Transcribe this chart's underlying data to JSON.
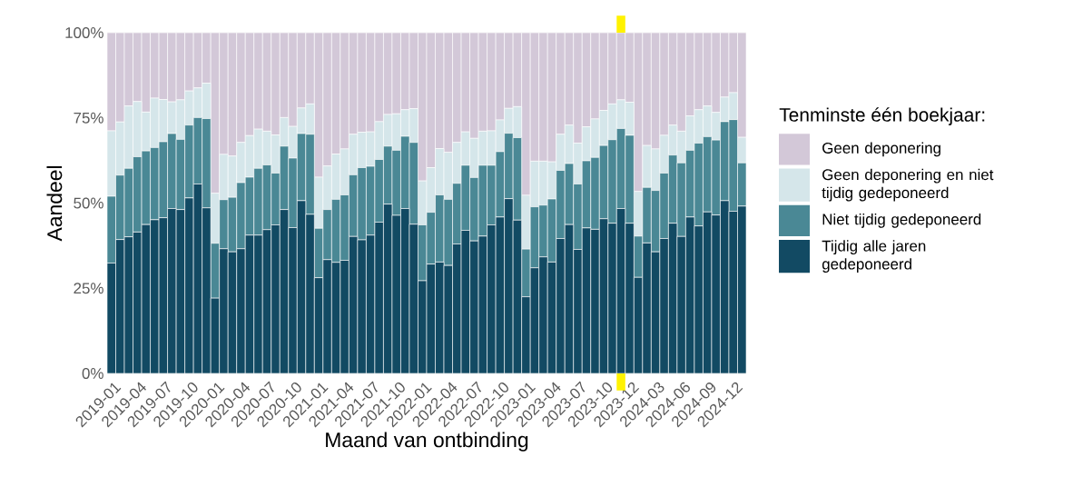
{
  "chart_data": {
    "type": "bar",
    "stacked": true,
    "xlabel": "Maand van ontbinding",
    "ylabel": "Aandeel",
    "legend_title": "Tenminste één boekjaar:",
    "categories": [
      "2019-01",
      null,
      null,
      "2019-04",
      null,
      null,
      "2019-07",
      null,
      null,
      "2019-10",
      null,
      null,
      "2020-01",
      null,
      null,
      "2020-04",
      null,
      null,
      "2020-07",
      null,
      null,
      "2020-10",
      null,
      null,
      "2021-01",
      null,
      null,
      "2021-04",
      null,
      null,
      "2021-07",
      null,
      null,
      "2021-10",
      null,
      null,
      "2022-01",
      null,
      null,
      "2022-04",
      null,
      null,
      "2022-07",
      null,
      null,
      "2022-10",
      null,
      null,
      "2023-01",
      null,
      null,
      "2023-04",
      null,
      null,
      "2023-07",
      null,
      null,
      "2023-10",
      null,
      null,
      "2023-12",
      null,
      null,
      "2024-03",
      null,
      null,
      "2024-06",
      null,
      null,
      "2024-09",
      null,
      null,
      "2024-12",
      null
    ],
    "series": [
      {
        "name": "Tijdig alle jaren gedeponeerd",
        "color": "#124a63",
        "values": [
          32.4,
          39.3,
          40.1,
          41.5,
          43.7,
          45.1,
          45.7,
          48.4,
          48.1,
          51.5,
          55.6,
          48.6,
          22.1,
          36.6,
          35.7,
          36.6,
          40.6,
          40.6,
          42.2,
          43.6,
          48.1,
          42.8,
          50.7,
          46.7,
          28.1,
          33.4,
          32.6,
          33.2,
          40.2,
          39.2,
          40.6,
          44.4,
          49.7,
          46.4,
          48.4,
          43.8,
          27.2,
          32.1,
          32.7,
          31.7,
          38.0,
          42.0,
          38.9,
          40.3,
          43.6,
          45.9,
          51.3,
          45.0,
          22.5,
          31.0,
          34.2,
          32.7,
          39.6,
          43.7,
          36.4,
          42.7,
          42.3,
          45.4,
          44.1,
          48.4,
          44.1,
          28.2,
          38.3,
          35.7,
          39.6,
          44.1,
          40.2,
          45.9,
          43.3,
          47.4,
          46.5,
          50.7,
          47.6,
          49.1
        ]
      },
      {
        "name": "Niet tijdig gedeponeerd",
        "color": "#4a8895",
        "values": [
          19.6,
          18.9,
          20.1,
          22.1,
          21.6,
          21.2,
          22.3,
          22.0,
          20.6,
          21.4,
          19.5,
          26.2,
          16.1,
          14.4,
          16.0,
          19.4,
          17.0,
          19.6,
          19.0,
          15.2,
          18.6,
          20.4,
          19.7,
          23.5,
          14.5,
          14.7,
          18.5,
          19.2,
          18.1,
          21.2,
          20.2,
          18.4,
          17.0,
          19.1,
          21.2,
          24.0,
          16.4,
          15.2,
          19.7,
          19.4,
          17.8,
          19.1,
          18.6,
          20.8,
          17.5,
          19.2,
          19.2,
          24.2,
          14.0,
          17.9,
          15.2,
          18.5,
          20.0,
          17.9,
          19.2,
          19.7,
          21.1,
          21.5,
          24.5,
          23.5,
          25.8,
          12.1,
          16.3,
          18.0,
          19.2,
          20.0,
          21.6,
          19.6,
          24.3,
          22.1,
          22.0,
          23.2,
          26.9,
          12.7
        ]
      },
      {
        "name": "Geen deponering en niet tijdig gedeponeerd",
        "color": "#d5e6ea",
        "values": [
          19.2,
          15.6,
          18.3,
          16.2,
          11.4,
          14.5,
          12.4,
          9.3,
          11.6,
          10.0,
          8.7,
          10.4,
          14.7,
          13.3,
          12.1,
          11.8,
          12.2,
          11.5,
          9.9,
          11.2,
          8.4,
          9.3,
          7.5,
          8.9,
          15.0,
          12.8,
          13.3,
          13.5,
          11.9,
          10.4,
          10.1,
          11.1,
          9.3,
          10.7,
          7.8,
          9.9,
          12.9,
          13.1,
          13.6,
          13.8,
          12.0,
          9.8,
          11.5,
          10.0,
          10.1,
          9.3,
          7.3,
          9.1,
          15.8,
          13.4,
          12.9,
          10.9,
          10.6,
          11.3,
          12.0,
          10.0,
          11.3,
          10.3,
          10.5,
          8.4,
          9.7,
          13.1,
          12.3,
          12.2,
          11.1,
          8.8,
          9.3,
          10.1,
          9.8,
          9.0,
          8.1,
          7.2,
          7.9,
          7.5
        ]
      },
      {
        "name": "Geen deponering",
        "color": "#d3c8d8",
        "values": [
          28.8,
          26.2,
          21.5,
          20.2,
          23.3,
          19.2,
          19.6,
          20.3,
          19.7,
          17.1,
          16.2,
          14.8,
          47.1,
          35.7,
          36.2,
          32.2,
          30.2,
          28.3,
          28.9,
          30.0,
          24.9,
          27.5,
          22.1,
          20.9,
          42.4,
          39.1,
          35.6,
          34.1,
          29.8,
          29.2,
          29.1,
          26.1,
          24.0,
          23.8,
          22.6,
          22.3,
          43.5,
          39.6,
          34.0,
          35.1,
          32.2,
          29.1,
          31.0,
          28.9,
          28.8,
          25.6,
          22.2,
          21.7,
          47.7,
          37.7,
          37.7,
          37.9,
          29.8,
          27.1,
          32.4,
          27.6,
          25.3,
          22.8,
          20.9,
          19.7,
          20.4,
          46.6,
          33.1,
          34.1,
          30.1,
          27.1,
          28.9,
          24.4,
          22.6,
          21.5,
          23.4,
          18.9,
          17.6,
          30.7
        ]
      }
    ],
    "ylim": [
      0,
      100
    ],
    "yticks": [
      {
        "value": 0,
        "label": "0%"
      },
      {
        "value": 25,
        "label": "25%"
      },
      {
        "value": 50,
        "label": "50%"
      },
      {
        "value": 75,
        "label": "75%"
      },
      {
        "value": 100,
        "label": "100%"
      }
    ],
    "grid": true,
    "legend": "right"
  }
}
